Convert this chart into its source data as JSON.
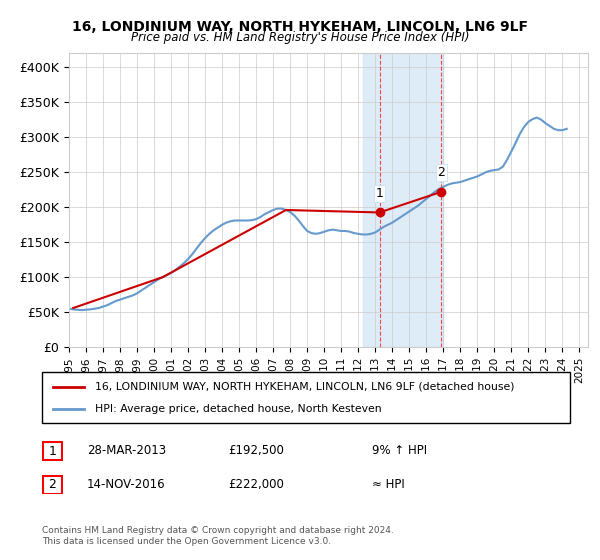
{
  "title": "16, LONDINIUM WAY, NORTH HYKEHAM, LINCOLN, LN6 9LF",
  "subtitle": "Price paid vs. HM Land Registry's House Price Index (HPI)",
  "ylabel_ticks": [
    "£0",
    "£50K",
    "£100K",
    "£150K",
    "£200K",
    "£250K",
    "£300K",
    "£350K",
    "£400K"
  ],
  "ytick_values": [
    0,
    50000,
    100000,
    150000,
    200000,
    250000,
    300000,
    350000,
    400000
  ],
  "ylim": [
    0,
    420000
  ],
  "xlim_start": 1995.0,
  "xlim_end": 2025.5,
  "legend_line1": "16, LONDINIUM WAY, NORTH HYKEHAM, LINCOLN, LN6 9LF (detached house)",
  "legend_line2": "HPI: Average price, detached house, North Kesteven",
  "annotation1_label": "1",
  "annotation1_date": "28-MAR-2013",
  "annotation1_price": "£192,500",
  "annotation1_hpi": "9% ↑ HPI",
  "annotation2_label": "2",
  "annotation2_date": "14-NOV-2016",
  "annotation2_price": "£222,000",
  "annotation2_hpi": "≈ HPI",
  "copyright_text": "Contains HM Land Registry data © Crown copyright and database right 2024.\nThis data is licensed under the Open Government Licence v3.0.",
  "red_color": "#cc0000",
  "blue_color": "#6699cc",
  "blue_fill": "#d0e4f5",
  "shaded_x1": 2012.25,
  "shaded_x2": 2017.0,
  "marker1_x": 2013.25,
  "marker1_y": 192500,
  "marker2_x": 2016.88,
  "marker2_y": 222000,
  "hpi_data_x": [
    1995.0,
    1995.25,
    1995.5,
    1995.75,
    1996.0,
    1996.25,
    1996.5,
    1996.75,
    1997.0,
    1997.25,
    1997.5,
    1997.75,
    1998.0,
    1998.25,
    1998.5,
    1998.75,
    1999.0,
    1999.25,
    1999.5,
    1999.75,
    2000.0,
    2000.25,
    2000.5,
    2000.75,
    2001.0,
    2001.25,
    2001.5,
    2001.75,
    2002.0,
    2002.25,
    2002.5,
    2002.75,
    2003.0,
    2003.25,
    2003.5,
    2003.75,
    2004.0,
    2004.25,
    2004.5,
    2004.75,
    2005.0,
    2005.25,
    2005.5,
    2005.75,
    2006.0,
    2006.25,
    2006.5,
    2006.75,
    2007.0,
    2007.25,
    2007.5,
    2007.75,
    2008.0,
    2008.25,
    2008.5,
    2008.75,
    2009.0,
    2009.25,
    2009.5,
    2009.75,
    2010.0,
    2010.25,
    2010.5,
    2010.75,
    2011.0,
    2011.25,
    2011.5,
    2011.75,
    2012.0,
    2012.25,
    2012.5,
    2012.75,
    2013.0,
    2013.25,
    2013.5,
    2013.75,
    2014.0,
    2014.25,
    2014.5,
    2014.75,
    2015.0,
    2015.25,
    2015.5,
    2015.75,
    2016.0,
    2016.25,
    2016.5,
    2016.75,
    2017.0,
    2017.25,
    2017.5,
    2017.75,
    2018.0,
    2018.25,
    2018.5,
    2018.75,
    2019.0,
    2019.25,
    2019.5,
    2019.75,
    2020.0,
    2020.25,
    2020.5,
    2020.75,
    2021.0,
    2021.25,
    2021.5,
    2021.75,
    2022.0,
    2022.25,
    2022.5,
    2022.75,
    2023.0,
    2023.25,
    2023.5,
    2023.75,
    2024.0,
    2024.25
  ],
  "hpi_data_y": [
    55000,
    54000,
    53500,
    53000,
    53500,
    54000,
    55000,
    56000,
    58000,
    60000,
    63000,
    66000,
    68000,
    70000,
    72000,
    74000,
    77000,
    81000,
    85000,
    89000,
    93000,
    97000,
    100000,
    103000,
    106000,
    110000,
    115000,
    120000,
    126000,
    133000,
    141000,
    149000,
    156000,
    162000,
    167000,
    171000,
    175000,
    178000,
    180000,
    181000,
    181000,
    181000,
    181000,
    181500,
    183000,
    186000,
    190000,
    193000,
    196000,
    198000,
    198000,
    196000,
    193000,
    188000,
    181000,
    173000,
    166000,
    163000,
    162000,
    163000,
    165000,
    167000,
    168000,
    167000,
    166000,
    166000,
    165000,
    163000,
    162000,
    161000,
    161000,
    162000,
    164000,
    168000,
    172000,
    175000,
    178000,
    182000,
    186000,
    190000,
    194000,
    198000,
    202000,
    207000,
    212000,
    217000,
    222000,
    226000,
    229000,
    232000,
    234000,
    235000,
    236000,
    238000,
    240000,
    242000,
    244000,
    247000,
    250000,
    252000,
    253000,
    254000,
    258000,
    268000,
    280000,
    292000,
    305000,
    315000,
    322000,
    326000,
    328000,
    325000,
    320000,
    316000,
    312000,
    310000,
    310000,
    312000
  ],
  "sale_data_x": [
    1995.25,
    2000.5,
    2007.75,
    2013.25,
    2016.88
  ],
  "sale_data_y": [
    56000,
    100000,
    196000,
    192500,
    222000
  ],
  "xtick_years": [
    1995,
    1996,
    1997,
    1998,
    1999,
    2000,
    2001,
    2002,
    2003,
    2004,
    2005,
    2006,
    2007,
    2008,
    2009,
    2010,
    2011,
    2012,
    2013,
    2014,
    2015,
    2016,
    2017,
    2018,
    2019,
    2020,
    2021,
    2022,
    2023,
    2024,
    2025
  ]
}
